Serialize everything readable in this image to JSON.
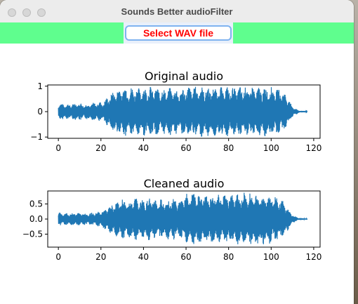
{
  "window": {
    "title": "Sounds Better audioFilter"
  },
  "toolbar": {
    "select_label": "Select WAV file",
    "background_color": "#5ffe8e",
    "button_text_color": "#ff0000"
  },
  "chart_data": [
    {
      "type": "line",
      "title": "Original audio",
      "xlabel": "",
      "ylabel": "",
      "xlim": [
        -5,
        123
      ],
      "ylim": [
        -1.05,
        1.05
      ],
      "xticks": [
        0,
        20,
        40,
        60,
        80,
        100,
        120
      ],
      "yticks": [
        -1,
        0,
        1
      ],
      "grid": false,
      "color": "#1f77b4",
      "envelope": [
        {
          "x": 0,
          "amp": 0.33
        },
        {
          "x": 5,
          "amp": 0.3
        },
        {
          "x": 9,
          "amp": 0.36
        },
        {
          "x": 13,
          "amp": 0.3
        },
        {
          "x": 17,
          "amp": 0.36
        },
        {
          "x": 21,
          "amp": 0.4
        },
        {
          "x": 25,
          "amp": 0.75
        },
        {
          "x": 27,
          "amp": 0.9
        },
        {
          "x": 30,
          "amp": 1.0
        },
        {
          "x": 33,
          "amp": 0.95
        },
        {
          "x": 36,
          "amp": 0.98
        },
        {
          "x": 40,
          "amp": 0.95
        },
        {
          "x": 43,
          "amp": 1.0
        },
        {
          "x": 47,
          "amp": 0.95
        },
        {
          "x": 50,
          "amp": 0.92
        },
        {
          "x": 54,
          "amp": 0.95
        },
        {
          "x": 57,
          "amp": 0.85
        },
        {
          "x": 60,
          "amp": 1.0
        },
        {
          "x": 64,
          "amp": 1.0
        },
        {
          "x": 70,
          "amp": 0.98
        },
        {
          "x": 76,
          "amp": 1.0
        },
        {
          "x": 82,
          "amp": 0.98
        },
        {
          "x": 88,
          "amp": 1.0
        },
        {
          "x": 94,
          "amp": 0.98
        },
        {
          "x": 100,
          "amp": 0.98
        },
        {
          "x": 104,
          "amp": 0.9
        },
        {
          "x": 107,
          "amp": 0.7
        },
        {
          "x": 109,
          "amp": 0.35
        },
        {
          "x": 111,
          "amp": 0.15
        },
        {
          "x": 113,
          "amp": 0.05
        },
        {
          "x": 117,
          "amp": 0.02
        }
      ]
    },
    {
      "type": "line",
      "title": "Cleaned audio",
      "xlabel": "",
      "ylabel": "",
      "xlim": [
        -5,
        123
      ],
      "ylim": [
        -0.93,
        0.93
      ],
      "xticks": [
        0,
        20,
        40,
        60,
        80,
        100,
        120
      ],
      "yticks": [
        -0.5,
        0.0,
        0.5
      ],
      "grid": false,
      "color": "#1f77b4",
      "envelope": [
        {
          "x": 0,
          "amp": 0.22
        },
        {
          "x": 5,
          "amp": 0.2
        },
        {
          "x": 9,
          "amp": 0.22
        },
        {
          "x": 13,
          "amp": 0.2
        },
        {
          "x": 17,
          "amp": 0.22
        },
        {
          "x": 21,
          "amp": 0.3
        },
        {
          "x": 25,
          "amp": 0.5
        },
        {
          "x": 27,
          "amp": 0.62
        },
        {
          "x": 30,
          "amp": 0.68
        },
        {
          "x": 33,
          "amp": 0.62
        },
        {
          "x": 36,
          "amp": 0.72
        },
        {
          "x": 40,
          "amp": 0.65
        },
        {
          "x": 43,
          "amp": 0.72
        },
        {
          "x": 47,
          "amp": 0.66
        },
        {
          "x": 50,
          "amp": 0.66
        },
        {
          "x": 54,
          "amp": 0.7
        },
        {
          "x": 57,
          "amp": 0.6
        },
        {
          "x": 60,
          "amp": 0.85
        },
        {
          "x": 64,
          "amp": 0.88
        },
        {
          "x": 70,
          "amp": 0.82
        },
        {
          "x": 76,
          "amp": 0.88
        },
        {
          "x": 82,
          "amp": 0.82
        },
        {
          "x": 88,
          "amp": 0.88
        },
        {
          "x": 94,
          "amp": 0.85
        },
        {
          "x": 100,
          "amp": 0.82
        },
        {
          "x": 104,
          "amp": 0.72
        },
        {
          "x": 107,
          "amp": 0.5
        },
        {
          "x": 109,
          "amp": 0.25
        },
        {
          "x": 111,
          "amp": 0.1
        },
        {
          "x": 113,
          "amp": 0.04
        },
        {
          "x": 117,
          "amp": 0.02
        }
      ]
    }
  ]
}
